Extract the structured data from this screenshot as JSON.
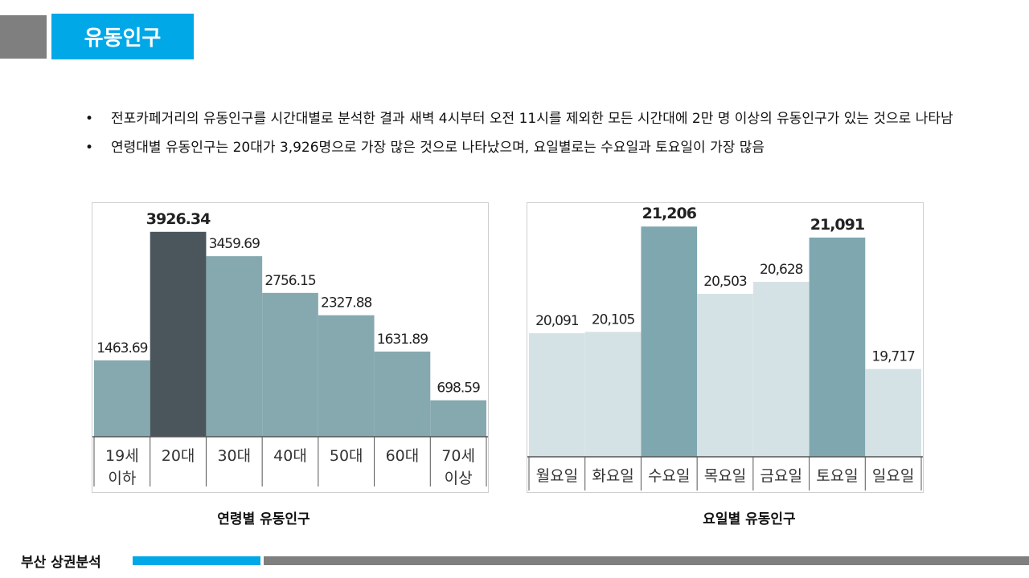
{
  "header": {
    "title": "유동인구"
  },
  "bullets": [
    "전포카페거리의 유동인구를 시간대별로 분석한 결과 새벽 4시부터 오전 11시를 제외한 모든 시간대에 2만 명 이상의 유동인구가 있는 것으로 나타남",
    "연령대별 유동인구는 20대가 3,926명으로 가장 많은 것으로 나타났으며, 요일별로는 수요일과 토요일이 가장 많음"
  ],
  "chart_data": [
    {
      "type": "bar",
      "title": "연령별 유동인구",
      "categories": [
        [
          "19세",
          "이하"
        ],
        [
          "20대"
        ],
        [
          "30대"
        ],
        [
          "40대"
        ],
        [
          "50대"
        ],
        [
          "60대"
        ],
        [
          "70세",
          "이상"
        ]
      ],
      "values": [
        1463.69,
        3926.34,
        3459.69,
        2756.15,
        2327.88,
        1631.89,
        698.59
      ],
      "value_labels": [
        "1463.69",
        "3926.34",
        "3459.69",
        "2756.15",
        "2327.88",
        "1631.89",
        "698.59"
      ],
      "highlight_index": 1,
      "ylim": [
        0,
        4200
      ],
      "colors": {
        "bar": "#86a9b0",
        "highlight": "#4a555c"
      }
    },
    {
      "type": "bar",
      "title": "요일별 유동인구",
      "categories": [
        "월요일",
        "화요일",
        "수요일",
        "목요일",
        "금요일",
        "토요일",
        "일요일"
      ],
      "values": [
        20091,
        20105,
        21206,
        20503,
        20628,
        21091,
        19717
      ],
      "value_labels": [
        "20,091",
        "20,105",
        "21,206",
        "20,503",
        "20,628",
        "21,091",
        "19,717"
      ],
      "highlight_indices": [
        2,
        5
      ],
      "ylim": [
        18800,
        21300
      ],
      "colors": {
        "bar": "#d5e2e5",
        "highlight": "#7fa7b0"
      }
    }
  ],
  "footer": {
    "label": "부산 상권분석"
  }
}
